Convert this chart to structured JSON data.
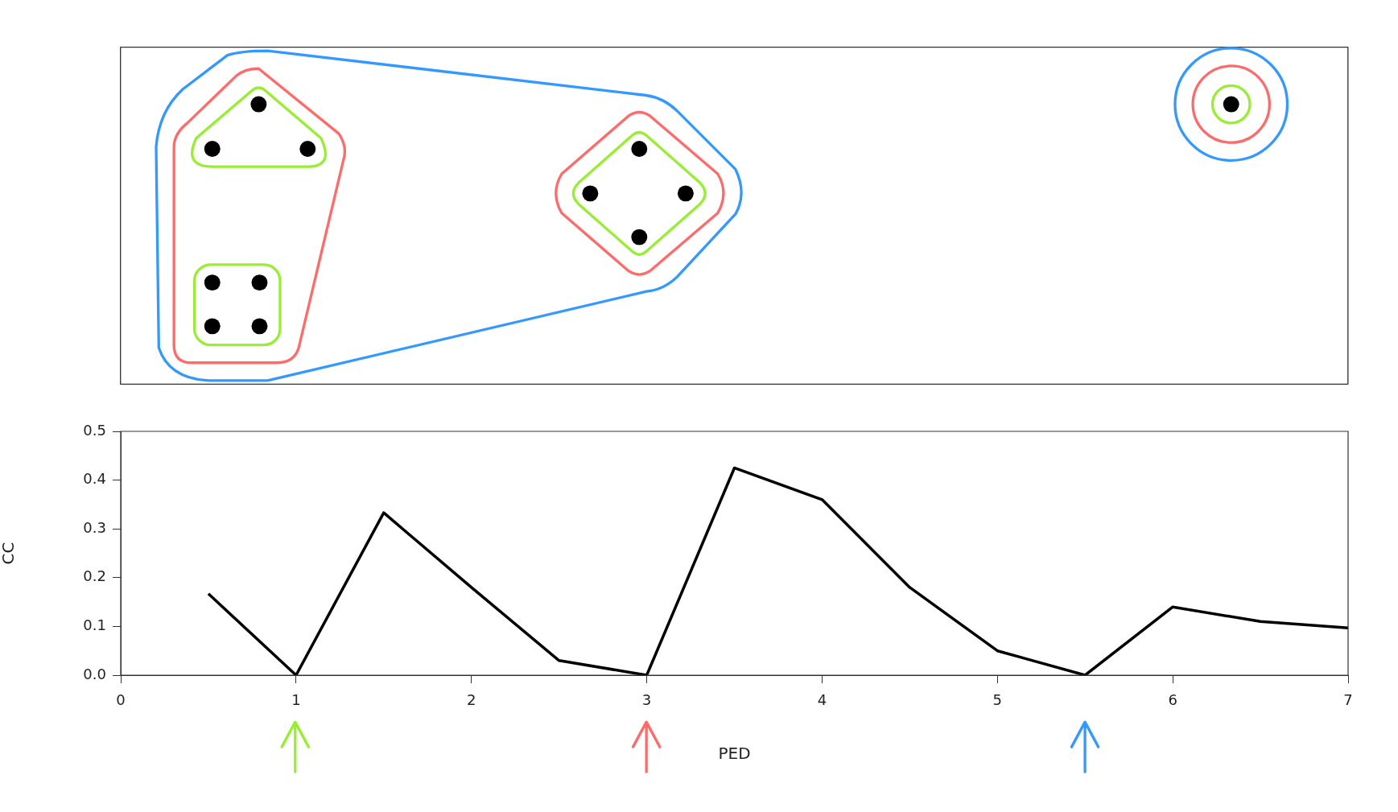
{
  "chart_data": {
    "type": "line",
    "xlabel": "PED",
    "ylabel": "CC",
    "x": [
      0.5,
      1,
      1.5,
      2,
      2.5,
      3,
      3.5,
      4,
      4.5,
      5,
      5.5,
      6,
      6.5,
      7
    ],
    "series": [
      {
        "color": "#000000",
        "values": [
          0.167,
          0,
          0.333,
          0.18,
          0.03,
          0,
          0.425,
          0.36,
          0.18,
          0.05,
          0,
          0.14,
          0.11,
          0.097
        ]
      }
    ],
    "xlim": [
      0,
      7
    ],
    "xticks": [
      0,
      1,
      2,
      3,
      4,
      5,
      6,
      7
    ],
    "ylim": [
      0,
      0.5
    ],
    "yticks": [
      {
        "value": 0,
        "label": "0.0"
      },
      0.1,
      0.2,
      0.3,
      0.4,
      0.5
    ],
    "grid": false,
    "legend": false,
    "marker": "none",
    "line_style": "solid"
  }
}
